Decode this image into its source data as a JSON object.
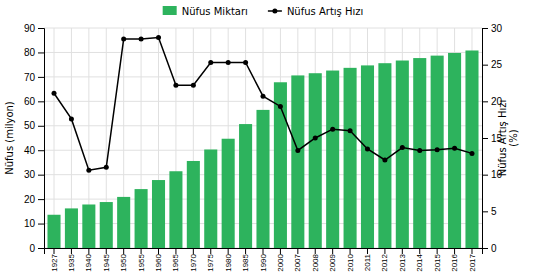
{
  "chart_data": {
    "type": "bar",
    "ylabel": "Nüfus (milyon)",
    "y2label": "Nüfus Artış Hızı\n(%)",
    "categories": [
      "1927",
      "1935",
      "1940",
      "1945",
      "1950",
      "1955",
      "1960",
      "1965",
      "1970",
      "1975",
      "1980",
      "1985",
      "1990",
      "2000",
      "2007",
      "2008",
      "2009",
      "2010",
      "2011",
      "2012",
      "2013",
      "2014",
      "2015",
      "2016",
      "2017"
    ],
    "series": [
      {
        "name": "Nüfus Miktarı",
        "type": "bar",
        "color": "#2db35d",
        "values": [
          13.6,
          16.2,
          17.8,
          18.8,
          20.9,
          24.1,
          27.8,
          31.4,
          35.6,
          40.3,
          44.7,
          50.7,
          56.5,
          67.8,
          70.6,
          71.5,
          72.6,
          73.7,
          74.7,
          75.6,
          76.7,
          77.7,
          78.7,
          79.8,
          80.8
        ]
      },
      {
        "name": "Nüfus Artış Hızı",
        "type": "line",
        "axis": "y2",
        "color": "black",
        "marker": "circle",
        "values": [
          21.1,
          17.6,
          10.6,
          11.0,
          28.5,
          28.5,
          28.7,
          22.2,
          22.2,
          25.3,
          25.3,
          25.3,
          20.7,
          19.3,
          13.3,
          15.0,
          16.2,
          16.0,
          13.5,
          12.0,
          13.7,
          13.3,
          13.4,
          13.6,
          12.9
        ]
      }
    ],
    "ylim": [
      0,
      90
    ],
    "yticks": [
      0,
      10,
      20,
      30,
      40,
      50,
      60,
      70,
      80,
      90
    ],
    "y2lim": [
      0,
      30
    ],
    "y2ticks": [
      0,
      5,
      10,
      15,
      20,
      25,
      30
    ],
    "grid": true,
    "legend": "top"
  }
}
